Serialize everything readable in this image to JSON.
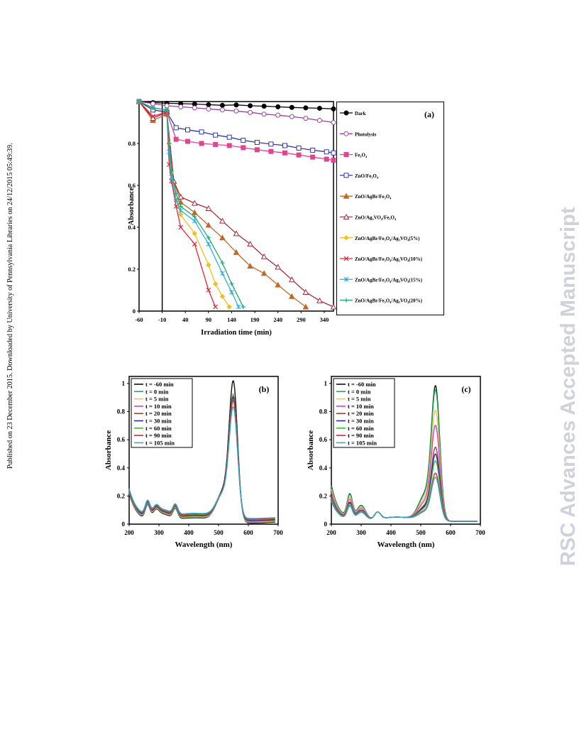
{
  "side_text_left": "Published on 23 December 2015. Downloaded by University of Pennsylvania Libraries on 24/12/2015 05:49:39.",
  "side_text_right": "RSC Advances Accepted Manuscript",
  "colors": {
    "Dark": "#000000",
    "Photolysis": "#a13fa0",
    "Fe3O4": "#e0468f",
    "ZnO/Fe3O4": "#2b3aa8",
    "ZnO/AgBr/Fe3O4": "#c0692a",
    "ZnO/Ag3VO4/Fe3O4": "#a52a3a",
    "5%": "#f2c01b",
    "10%": "#e0263a",
    "15%": "#2fb0e0",
    "20%": "#20a878",
    "t-60": "#111111",
    "t0": "#1aa85a",
    "t5": "#f2c84a",
    "t10": "#d63cd6",
    "t20": "#9a4a2a",
    "t30": "#2a2aa8",
    "t60": "#36c036",
    "t90": "#d42a2a",
    "t105": "#36a8c8"
  },
  "chart_data": [
    {
      "type": "line",
      "panel_label": "(a)",
      "xlabel": "Irradiation  time (min)",
      "ylabel": "Absorbance",
      "xlim": [
        -60,
        360
      ],
      "ylim": [
        0,
        1.0
      ],
      "x_ticks": [
        "-60",
        "-10",
        "40",
        "90",
        "140",
        "190",
        "240",
        "290",
        "340"
      ],
      "y_ticks": [
        "0",
        "0.2",
        "0.4",
        "0.6",
        "0.8"
      ],
      "legend_position": "right",
      "series": [
        {
          "name": "Dark",
          "marker": "circle",
          "color_key": "Dark",
          "x": [
            -60,
            -30,
            0,
            30,
            60,
            90,
            120,
            150,
            180,
            210,
            240,
            270,
            300,
            330,
            360
          ],
          "y": [
            1.0,
            0.995,
            0.992,
            0.99,
            0.988,
            0.985,
            0.982,
            0.984,
            0.98,
            0.978,
            0.975,
            0.972,
            0.97,
            0.968,
            0.965
          ]
        },
        {
          "name": "Photolysis",
          "marker": "circle-open",
          "color_key": "Photolysis",
          "x": [
            -60,
            -30,
            0,
            30,
            60,
            90,
            120,
            150,
            180,
            210,
            240,
            270,
            300,
            330,
            360
          ],
          "y": [
            1.0,
            0.99,
            0.98,
            0.975,
            0.97,
            0.965,
            0.96,
            0.955,
            0.948,
            0.94,
            0.935,
            0.928,
            0.92,
            0.91,
            0.9
          ]
        },
        {
          "name": "Fe₃O₄",
          "marker": "square",
          "color_key": "Fe3O4",
          "x": [
            -60,
            -30,
            0,
            20,
            45,
            75,
            105,
            135,
            165,
            195,
            225,
            255,
            285,
            315,
            345,
            360
          ],
          "y": [
            1.0,
            0.96,
            0.95,
            0.82,
            0.81,
            0.8,
            0.795,
            0.79,
            0.78,
            0.77,
            0.762,
            0.755,
            0.745,
            0.735,
            0.725,
            0.72
          ]
        },
        {
          "name": "ZnO/Fe₃O₄",
          "marker": "square-open",
          "color_key": "ZnO/Fe3O4",
          "x": [
            -60,
            -30,
            0,
            20,
            45,
            75,
            105,
            135,
            165,
            195,
            225,
            255,
            285,
            315,
            345,
            360
          ],
          "y": [
            1.0,
            0.96,
            0.95,
            0.875,
            0.865,
            0.855,
            0.84,
            0.83,
            0.815,
            0.805,
            0.797,
            0.79,
            0.778,
            0.768,
            0.76,
            0.755
          ]
        },
        {
          "name": "ZnO/AgBr/Fe₃O₄",
          "marker": "triangle",
          "color_key": "ZnO/AgBr/Fe3O4",
          "x": [
            -60,
            -30,
            0,
            15,
            30,
            60,
            90,
            120,
            150,
            180,
            210,
            240,
            270,
            300
          ],
          "y": [
            1.0,
            0.91,
            0.94,
            0.62,
            0.52,
            0.47,
            0.41,
            0.35,
            0.28,
            0.215,
            0.18,
            0.125,
            0.07,
            0.02
          ]
        },
        {
          "name": "ZnO/Ag₃VO₄/Fe₃O₄",
          "marker": "triangle-open",
          "color_key": "ZnO/Ag3VO4/Fe3O4",
          "x": [
            -60,
            -30,
            0,
            15,
            30,
            60,
            90,
            120,
            150,
            180,
            210,
            240,
            270,
            300,
            330,
            360
          ],
          "y": [
            1.0,
            0.92,
            0.95,
            0.62,
            0.545,
            0.515,
            0.49,
            0.43,
            0.37,
            0.32,
            0.26,
            0.21,
            0.15,
            0.09,
            0.05,
            0.02
          ]
        },
        {
          "name": "ZnO/AgBr/Fe₃O₄/Ag₃VO₄(5%)",
          "marker": "diamond",
          "color_key": "5%",
          "x": [
            -60,
            -30,
            0,
            5,
            10,
            20,
            30,
            60,
            90,
            105,
            120,
            135
          ],
          "y": [
            1.0,
            0.97,
            0.96,
            0.8,
            0.66,
            0.53,
            0.46,
            0.37,
            0.22,
            0.13,
            0.07,
            0.02
          ]
        },
        {
          "name": "ZnO/AgBr/Fe₃O₄/Ag₃VO₄(10%)",
          "marker": "x",
          "color_key": "10%",
          "x": [
            -60,
            -30,
            0,
            5,
            10,
            20,
            30,
            60,
            90,
            105
          ],
          "y": [
            1.0,
            0.93,
            0.95,
            0.7,
            0.62,
            0.5,
            0.4,
            0.32,
            0.1,
            0.02
          ]
        },
        {
          "name": "ZnO/AgBr/Fe₃O₄/Ag₃VO₄(15%)",
          "marker": "star",
          "color_key": "15%",
          "x": [
            -60,
            -30,
            0,
            5,
            10,
            20,
            30,
            60,
            90,
            120,
            140,
            155
          ],
          "y": [
            1.0,
            0.97,
            0.96,
            0.76,
            0.64,
            0.53,
            0.48,
            0.43,
            0.32,
            0.18,
            0.09,
            0.02
          ]
        },
        {
          "name": "ZnO/AgBr/Fe₃O₄/Ag₃VO₄(20%)",
          "marker": "plus",
          "color_key": "20%",
          "x": [
            -60,
            -30,
            0,
            5,
            10,
            20,
            30,
            60,
            90,
            120,
            140,
            165
          ],
          "y": [
            1.0,
            0.97,
            0.96,
            0.8,
            0.67,
            0.56,
            0.5,
            0.45,
            0.35,
            0.23,
            0.13,
            0.02
          ]
        }
      ]
    },
    {
      "type": "line",
      "panel_label": "(b)",
      "xlabel": "Wavelength (nm)",
      "ylabel": "Absorbance",
      "xlim": [
        200,
        700
      ],
      "ylim": [
        0,
        1.05
      ],
      "x_ticks": [
        "200",
        "300",
        "400",
        "500",
        "600",
        "700"
      ],
      "y_ticks": [
        "0",
        "0.2",
        "0.4",
        "0.6",
        "0.8",
        "1"
      ],
      "legend_position": "top-left",
      "series": [
        {
          "name": "t = -60 min",
          "color_key": "t-60",
          "peak": 1.02
        },
        {
          "name": "t = 0 min",
          "color_key": "t0",
          "peak": 0.92
        },
        {
          "name": "t = 5 min",
          "color_key": "t5",
          "peak": 0.91
        },
        {
          "name": "t = 10 min",
          "color_key": "t10",
          "peak": 0.9
        },
        {
          "name": "t = 20 min",
          "color_key": "t20",
          "peak": 0.89
        },
        {
          "name": "t = 30 min",
          "color_key": "t30",
          "peak": 0.88
        },
        {
          "name": "t = 60 min",
          "color_key": "t60",
          "peak": 0.86
        },
        {
          "name": "t = 90 min",
          "color_key": "t90",
          "peak": 0.85
        },
        {
          "name": "t = 105 min",
          "color_key": "t105",
          "peak": 0.8
        }
      ]
    },
    {
      "type": "line",
      "panel_label": "(c)",
      "xlabel": "Wavelength (nm)",
      "ylabel": "Absorbance",
      "xlim": [
        200,
        700
      ],
      "ylim": [
        0,
        1.05
      ],
      "x_ticks": [
        "200",
        "300",
        "400",
        "500",
        "600",
        "700"
      ],
      "y_ticks": [
        "0",
        "0.2",
        "0.4",
        "0.6",
        "0.8",
        "1"
      ],
      "legend_position": "top-left",
      "series": [
        {
          "name": "t = -60 min",
          "color_key": "t-60",
          "peak": 0.99
        },
        {
          "name": "t = 0 min",
          "color_key": "t0",
          "peak": 0.96
        },
        {
          "name": "t = 5 min",
          "color_key": "t5",
          "peak": 0.81
        },
        {
          "name": "t = 10 min",
          "color_key": "t10",
          "peak": 0.7
        },
        {
          "name": "t = 20 min",
          "color_key": "t20",
          "peak": 0.54
        },
        {
          "name": "t = 30 min",
          "color_key": "t30",
          "peak": 0.49
        },
        {
          "name": "t = 60 min",
          "color_key": "t60",
          "peak": 0.44
        },
        {
          "name": "t = 90 min",
          "color_key": "t90",
          "peak": 0.35
        },
        {
          "name": "t = 105 min",
          "color_key": "t105",
          "peak": 0.32
        }
      ]
    }
  ]
}
